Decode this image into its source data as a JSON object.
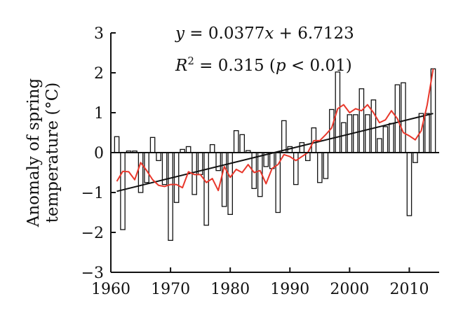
{
  "chart_data": {
    "type": "bar",
    "ylabel_line1": "Anomaly of spring",
    "ylabel_line2": "temperature (°C)",
    "xlabel": "",
    "ylim": [
      -3,
      3
    ],
    "xlim": [
      1960,
      2015
    ],
    "xticks": [
      "1960",
      "1970",
      "1980",
      "1990",
      "2000",
      "2010"
    ],
    "yticks": [
      "3",
      "2",
      "1",
      "0",
      "−1",
      "−2",
      "−3"
    ],
    "annotations": {
      "eq_y": "y",
      "eq_rest": " = 0.0377",
      "eq_x": "x",
      "eq_tail": " + 6.7123",
      "r2_r": "R",
      "r2_sup": "2",
      "r2_mid": " = 0.315 (",
      "r2_p": "p",
      "r2_tail": " < 0.01)"
    },
    "years": [
      1961,
      1962,
      1963,
      1964,
      1965,
      1966,
      1967,
      1968,
      1969,
      1970,
      1971,
      1972,
      1973,
      1974,
      1975,
      1976,
      1977,
      1978,
      1979,
      1980,
      1981,
      1982,
      1983,
      1984,
      1985,
      1986,
      1987,
      1988,
      1989,
      1990,
      1991,
      1992,
      1993,
      1994,
      1995,
      1996,
      1997,
      1998,
      1999,
      2000,
      2001,
      2002,
      2003,
      2004,
      2005,
      2006,
      2007,
      2008,
      2009,
      2010,
      2011,
      2012,
      2013,
      2014
    ],
    "series": [
      {
        "values": [
          0.4,
          -1.93,
          0.04,
          0.04,
          -1.0,
          -0.75,
          0.38,
          -0.2,
          -0.8,
          -2.2,
          -1.25,
          0.08,
          0.15,
          -1.05,
          -0.55,
          -1.82,
          0.2,
          -0.45,
          -1.35,
          -1.55,
          0.55,
          0.45,
          0.05,
          -0.9,
          -1.1,
          -0.35,
          -0.4,
          -1.5,
          0.8,
          0.15,
          -0.8,
          0.25,
          -0.2,
          0.62,
          -0.75,
          -0.65,
          1.08,
          2.02,
          0.75,
          0.95,
          0.95,
          1.6,
          0.95,
          1.32,
          0.35,
          0.65,
          0.73,
          1.7,
          1.75,
          -1.58,
          -0.25,
          0.98,
          0.98,
          2.1
        ]
      },
      {
        "values": [
          -0.72,
          -0.47,
          -0.48,
          -0.68,
          -0.25,
          -0.45,
          -0.68,
          -0.82,
          -0.85,
          -0.8,
          -0.8,
          -0.88,
          -0.48,
          -0.55,
          -0.55,
          -0.75,
          -0.65,
          -0.95,
          -0.35,
          -0.62,
          -0.42,
          -0.5,
          -0.3,
          -0.5,
          -0.45,
          -0.78,
          -0.4,
          -0.3,
          -0.05,
          -0.1,
          -0.2,
          -0.1,
          0.0,
          0.3,
          0.3,
          0.45,
          0.62,
          1.1,
          1.2,
          1.0,
          1.1,
          1.05,
          1.2,
          1.0,
          0.75,
          0.82,
          1.05,
          0.85,
          0.5,
          0.42,
          0.32,
          0.55,
          1.2,
          2.1
        ]
      }
    ],
    "trend": {
      "x": [
        1961,
        2014
      ],
      "y": [
        -0.97,
        0.98
      ]
    }
  }
}
